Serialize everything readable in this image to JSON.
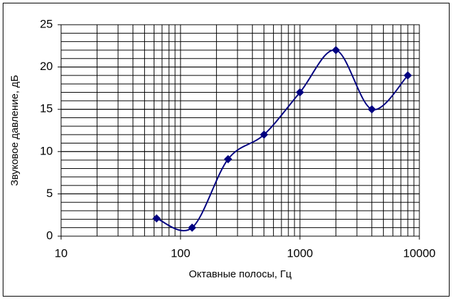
{
  "chart_data": {
    "type": "line",
    "smooth": true,
    "log_x": true,
    "grid": true,
    "minor_grid": true,
    "x_label": "Октавные полосы, Гц",
    "y_label": "Звуковое давление, дБ",
    "x": [
      63,
      125,
      250,
      500,
      1000,
      2000,
      4000,
      8000
    ],
    "series": [
      {
        "color": "#000080",
        "values": [
          2.1,
          1.0,
          9.1,
          12,
          17,
          22,
          15,
          19
        ]
      }
    ],
    "xlim": [
      10,
      10000
    ],
    "xticks": [
      10,
      100,
      1000,
      10000
    ],
    "ylim": [
      0,
      25
    ],
    "yticks": [
      0,
      5,
      10,
      15,
      20,
      25
    ]
  }
}
